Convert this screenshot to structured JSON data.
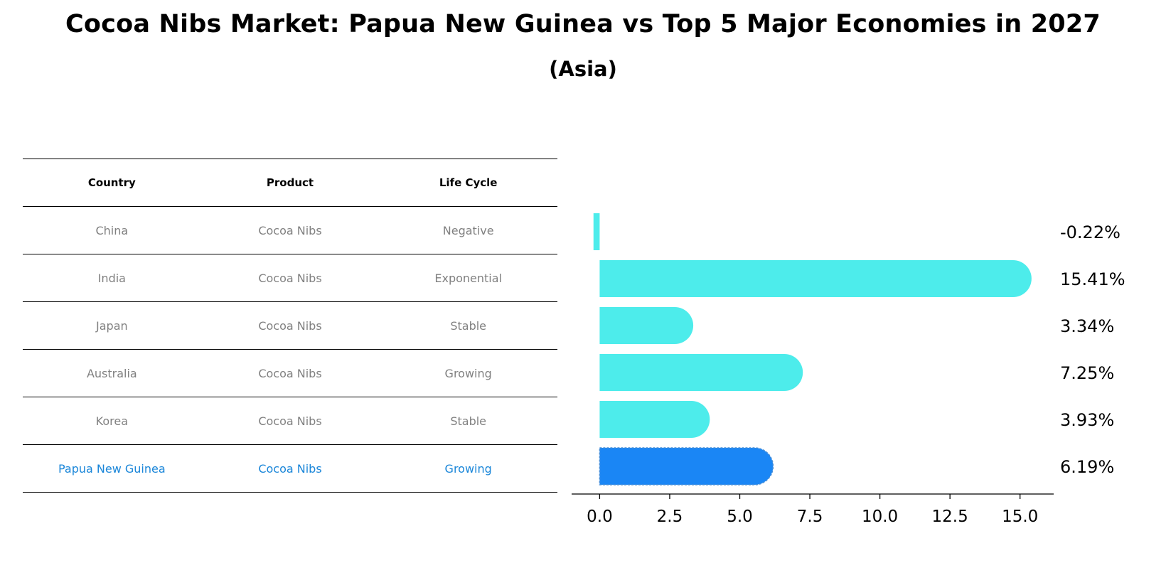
{
  "title": "Cocoa Nibs Market: Papua New Guinea vs Top 5 Major Economies in 2027",
  "subtitle": "(Asia)",
  "table": {
    "headers": [
      "Country",
      "Product",
      "Life Cycle"
    ],
    "rows": [
      [
        "China",
        "Cocoa Nibs",
        "Negative"
      ],
      [
        "India",
        "Cocoa Nibs",
        "Exponential"
      ],
      [
        "Japan",
        "Cocoa Nibs",
        "Stable"
      ],
      [
        "Australia",
        "Cocoa Nibs",
        "Growing"
      ],
      [
        "Korea",
        "Cocoa Nibs",
        "Stable"
      ],
      [
        "Papua New Guinea",
        "Cocoa Nibs",
        "Growing"
      ]
    ],
    "highlight_row": 5
  },
  "colors": {
    "bar": "#4deceb",
    "highlight": "#1a86f5",
    "highlight_text": "#1a86d9",
    "muted_text": "#808080"
  },
  "chart_data": {
    "type": "bar",
    "orientation": "horizontal",
    "categories": [
      "China",
      "India",
      "Japan",
      "Australia",
      "Korea",
      "Papua New Guinea"
    ],
    "values": [
      -0.22,
      15.41,
      3.34,
      7.25,
      3.93,
      6.19
    ],
    "labels": [
      "-0.22%",
      "15.41%",
      "3.34%",
      "7.25%",
      "3.93%",
      "6.19%"
    ],
    "highlight_index": 5,
    "xlim": [
      -1.0,
      16.2
    ],
    "xticks": [
      0.0,
      2.5,
      5.0,
      7.5,
      10.0,
      12.5,
      15.0
    ],
    "xtick_labels": [
      "0.0",
      "2.5",
      "5.0",
      "7.5",
      "10.0",
      "12.5",
      "15.0"
    ],
    "xlabel": "",
    "ylabel": ""
  }
}
